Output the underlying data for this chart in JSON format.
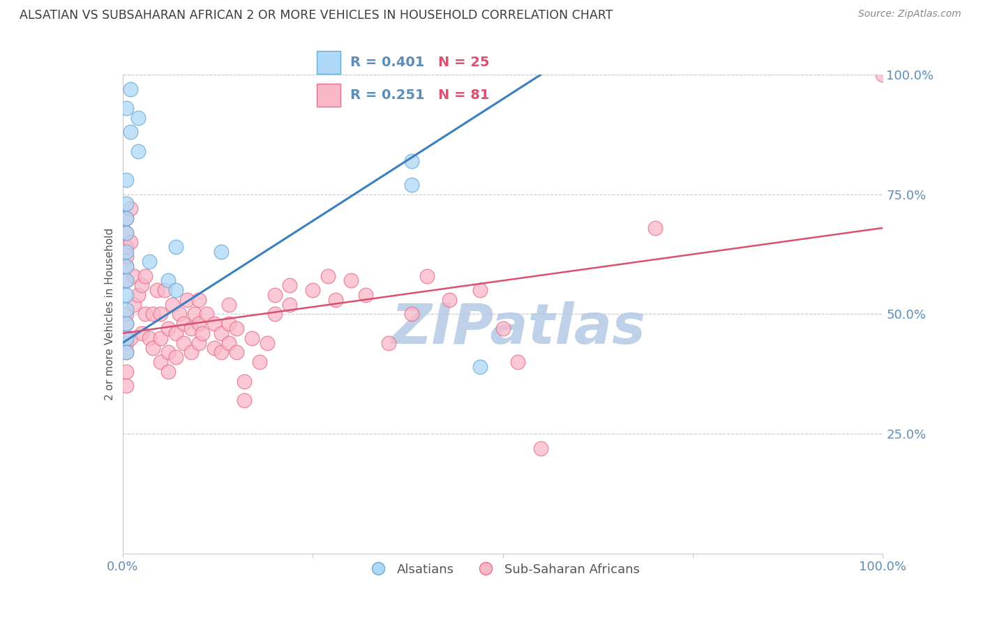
{
  "title": "ALSATIAN VS SUBSAHARAN AFRICAN 2 OR MORE VEHICLES IN HOUSEHOLD CORRELATION CHART",
  "source": "Source: ZipAtlas.com",
  "ylabel": "2 or more Vehicles in Household",
  "right_ytick_labels": [
    "100.0%",
    "75.0%",
    "50.0%",
    "25.0%"
  ],
  "right_ytick_values": [
    1.0,
    0.75,
    0.5,
    0.25
  ],
  "legend_blue_r": "R = 0.401",
  "legend_blue_n": "N = 25",
  "legend_pink_r": "R = 0.251",
  "legend_pink_n": "N = 81",
  "blue_color": "#ADD8F7",
  "pink_color": "#F9B8C8",
  "blue_edge_color": "#6AAAD4",
  "pink_edge_color": "#E8708A",
  "blue_line_color": "#3A7FC1",
  "pink_line_color": "#D95070",
  "watermark": "ZIPatlas",
  "watermark_color_r": 180,
  "watermark_color_g": 200,
  "watermark_color_b": 230,
  "title_color": "#3C3C3C",
  "source_color": "#888888",
  "axis_label_color": "#5B8DB8",
  "legend_r_color": "#5B8DB8",
  "legend_n_color": "#D95070",
  "blue_scatter_x": [
    0.005,
    0.01,
    0.01,
    0.02,
    0.02,
    0.005,
    0.005,
    0.005,
    0.005,
    0.005,
    0.005,
    0.005,
    0.005,
    0.005,
    0.005,
    0.005,
    0.005,
    0.035,
    0.06,
    0.07,
    0.07,
    0.13,
    0.38,
    0.38,
    0.47
  ],
  "blue_scatter_y": [
    0.93,
    0.97,
    0.88,
    0.91,
    0.84,
    0.78,
    0.73,
    0.7,
    0.67,
    0.63,
    0.6,
    0.57,
    0.54,
    0.51,
    0.48,
    0.45,
    0.42,
    0.61,
    0.57,
    0.64,
    0.55,
    0.63,
    0.82,
    0.77,
    0.39
  ],
  "pink_scatter_x": [
    0.005,
    0.005,
    0.005,
    0.005,
    0.005,
    0.005,
    0.005,
    0.005,
    0.005,
    0.005,
    0.005,
    0.005,
    0.01,
    0.01,
    0.01,
    0.015,
    0.015,
    0.02,
    0.025,
    0.025,
    0.03,
    0.03,
    0.035,
    0.04,
    0.04,
    0.045,
    0.05,
    0.05,
    0.05,
    0.055,
    0.06,
    0.06,
    0.06,
    0.065,
    0.07,
    0.07,
    0.075,
    0.08,
    0.08,
    0.085,
    0.09,
    0.09,
    0.095,
    0.1,
    0.1,
    0.1,
    0.105,
    0.11,
    0.12,
    0.12,
    0.13,
    0.13,
    0.14,
    0.14,
    0.14,
    0.15,
    0.15,
    0.16,
    0.16,
    0.17,
    0.18,
    0.19,
    0.2,
    0.2,
    0.22,
    0.22,
    0.25,
    0.27,
    0.28,
    0.3,
    0.32,
    0.35,
    0.38,
    0.4,
    0.43,
    0.47,
    0.5,
    0.52,
    0.55,
    0.7,
    1.0
  ],
  "pink_scatter_y": [
    0.48,
    0.5,
    0.44,
    0.42,
    0.38,
    0.35,
    0.57,
    0.6,
    0.62,
    0.64,
    0.67,
    0.7,
    0.45,
    0.65,
    0.72,
    0.58,
    0.52,
    0.54,
    0.56,
    0.46,
    0.5,
    0.58,
    0.45,
    0.43,
    0.5,
    0.55,
    0.4,
    0.45,
    0.5,
    0.55,
    0.38,
    0.42,
    0.47,
    0.52,
    0.41,
    0.46,
    0.5,
    0.44,
    0.48,
    0.53,
    0.42,
    0.47,
    0.5,
    0.44,
    0.48,
    0.53,
    0.46,
    0.5,
    0.43,
    0.48,
    0.42,
    0.46,
    0.44,
    0.48,
    0.52,
    0.42,
    0.47,
    0.32,
    0.36,
    0.45,
    0.4,
    0.44,
    0.5,
    0.54,
    0.56,
    0.52,
    0.55,
    0.58,
    0.53,
    0.57,
    0.54,
    0.44,
    0.5,
    0.58,
    0.53,
    0.55,
    0.47,
    0.4,
    0.22,
    0.68,
    1.0
  ],
  "xlim": [
    0,
    1.0
  ],
  "ylim": [
    0,
    1.0
  ],
  "figsize": [
    14.06,
    8.92
  ],
  "dpi": 100,
  "blue_trend_x": [
    0.0,
    0.55
  ],
  "blue_trend_y_start": 0.44,
  "blue_trend_y_end": 1.0,
  "pink_trend_x": [
    0.0,
    1.0
  ],
  "pink_trend_y_start": 0.46,
  "pink_trend_y_end": 0.68
}
